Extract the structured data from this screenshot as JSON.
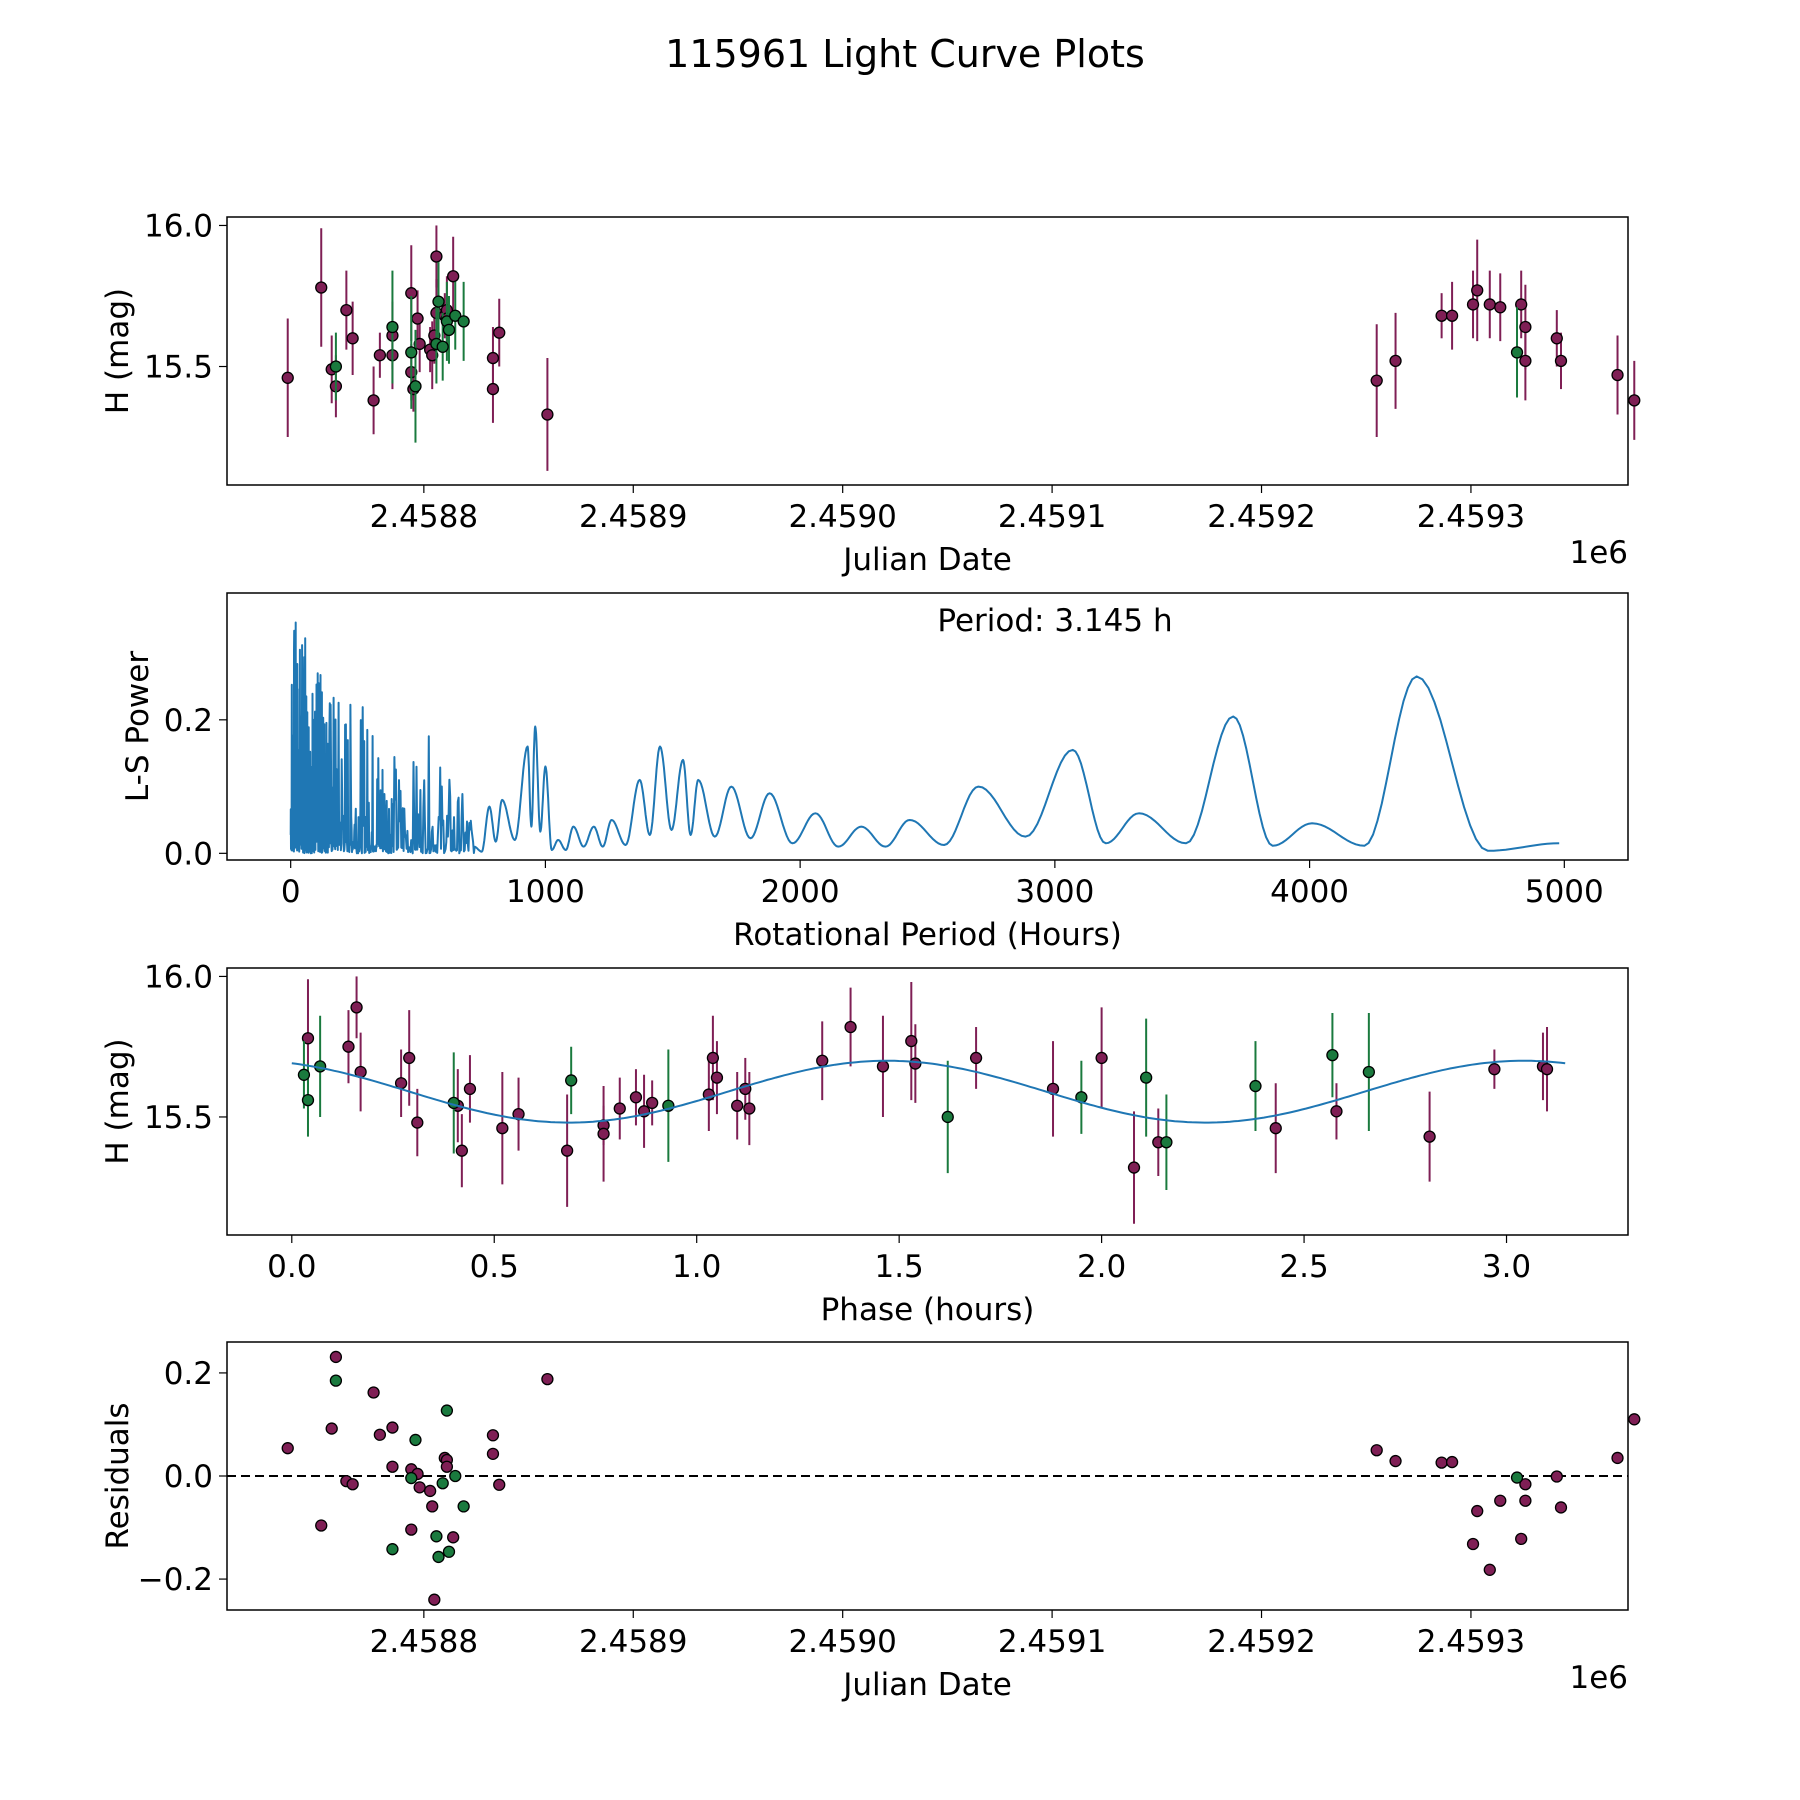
{
  "figure": {
    "title": "115961 Light Curve Plots"
  },
  "colors": {
    "series_a": "#7f1f55",
    "series_b": "#1a7a3e",
    "periodogram": "#1f77b4",
    "model": "#1f77b4",
    "marker_edge": "#000000"
  },
  "chart_data": [
    {
      "id": "light-curve",
      "type": "scatter",
      "title": "",
      "xlabel": "Julian Date",
      "ylabel": "H (mag)",
      "x_offset_label": "1e6",
      "xlim": [
        2458706,
        2459375
      ],
      "ylim": [
        15.08,
        16.03
      ],
      "xticks": [
        2458800,
        2458900,
        2459000,
        2459100,
        2459200,
        2459300
      ],
      "xtick_labels": [
        "2.4588",
        "2.4589",
        "2.4590",
        "2.4591",
        "2.4592",
        "2.4593"
      ],
      "yticks": [
        15.5,
        16.0
      ],
      "ytick_labels": [
        "15.5",
        "16.0"
      ],
      "grid": false,
      "series": [
        {
          "name": "magenta",
          "color_key": "series_a",
          "points": [
            [
              2458735,
              15.46,
              0.21
            ],
            [
              2458751,
              15.78,
              0.21
            ],
            [
              2458756,
              15.49,
              0.12
            ],
            [
              2458758,
              15.43,
              0.11
            ],
            [
              2458763,
              15.7,
              0.14
            ],
            [
              2458766,
              15.6,
              0.13
            ],
            [
              2458776,
              15.38,
              0.12
            ],
            [
              2458779,
              15.54,
              0.08
            ],
            [
              2458785,
              15.61,
              0.12
            ],
            [
              2458785,
              15.54,
              0.12
            ],
            [
              2458794,
              15.76,
              0.17
            ],
            [
              2458794,
              15.48,
              0.1
            ],
            [
              2458795,
              15.42,
              0.08
            ],
            [
              2458797,
              15.67,
              0.1
            ],
            [
              2458798,
              15.58,
              0.1
            ],
            [
              2458803,
              15.56,
              0.08
            ],
            [
              2458804,
              15.54,
              0.12
            ],
            [
              2458805,
              15.61,
              0.1
            ],
            [
              2458806,
              15.89,
              0.11
            ],
            [
              2458806,
              15.69,
              0.12
            ],
            [
              2458810,
              15.68,
              0.08
            ],
            [
              2458811,
              15.7,
              0.12
            ],
            [
              2458811,
              15.67,
              0.08
            ],
            [
              2458814,
              15.82,
              0.14
            ],
            [
              2458833,
              15.53,
              0.11
            ],
            [
              2458833,
              15.42,
              0.12
            ],
            [
              2458836,
              15.62,
              0.12
            ],
            [
              2458859,
              15.33,
              0.2
            ],
            [
              2459255,
              15.45,
              0.2
            ],
            [
              2459264,
              15.52,
              0.17
            ],
            [
              2459286,
              15.68,
              0.08
            ],
            [
              2459291,
              15.68,
              0.12
            ],
            [
              2459301,
              15.72,
              0.12
            ],
            [
              2459303,
              15.77,
              0.18
            ],
            [
              2459309,
              15.72,
              0.12
            ],
            [
              2459314,
              15.71,
              0.12
            ],
            [
              2459324,
              15.72,
              0.12
            ],
            [
              2459326,
              15.52,
              0.14
            ],
            [
              2459326,
              15.64,
              0.15
            ],
            [
              2459341,
              15.6,
              0.1
            ],
            [
              2459343,
              15.52,
              0.1
            ],
            [
              2459370,
              15.47,
              0.14
            ],
            [
              2459378,
              15.38,
              0.14
            ]
          ]
        },
        {
          "name": "green",
          "color_key": "series_b",
          "points": [
            [
              2458758,
              15.5,
              0.12
            ],
            [
              2458785,
              15.64,
              0.2
            ],
            [
              2458794,
              15.55,
              0.2
            ],
            [
              2458796,
              15.43,
              0.2
            ],
            [
              2458806,
              15.58,
              0.14
            ],
            [
              2458807,
              15.73,
              0.14
            ],
            [
              2458809,
              15.57,
              0.12
            ],
            [
              2458811,
              15.66,
              0.14
            ],
            [
              2458812,
              15.63,
              0.12
            ],
            [
              2458815,
              15.68,
              0.12
            ],
            [
              2458819,
              15.66,
              0.14
            ],
            [
              2459322,
              15.55,
              0.16
            ]
          ]
        }
      ]
    },
    {
      "id": "periodogram",
      "type": "line",
      "title": "",
      "annotation": "Period: 3.145 h",
      "xlabel": "Rotational Period (Hours)",
      "ylabel": "L-S Power",
      "xlim": [
        -250,
        5250
      ],
      "ylim": [
        -0.01,
        0.39
      ],
      "xticks": [
        0,
        1000,
        2000,
        3000,
        4000,
        5000
      ],
      "xtick_labels": [
        "0",
        "1000",
        "2000",
        "3000",
        "4000",
        "5000"
      ],
      "yticks": [
        0.0,
        0.2
      ],
      "ytick_labels": [
        "0.0",
        "0.2"
      ],
      "grid": false,
      "noisy_region": {
        "x_start": 0,
        "x_end": 720,
        "peak_envelope": [
          [
            0,
            0.375
          ],
          [
            50,
            0.34
          ],
          [
            100,
            0.28
          ],
          [
            200,
            0.25
          ],
          [
            350,
            0.2
          ],
          [
            450,
            0.13
          ],
          [
            550,
            0.18
          ],
          [
            650,
            0.1
          ],
          [
            720,
            0.08
          ]
        ]
      },
      "smooth_peaks": [
        [
          780,
          0.07
        ],
        [
          830,
          0.08
        ],
        [
          930,
          0.16
        ],
        [
          960,
          0.19
        ],
        [
          1000,
          0.13
        ],
        [
          1050,
          0.02
        ],
        [
          1110,
          0.04
        ],
        [
          1190,
          0.04
        ],
        [
          1260,
          0.05
        ],
        [
          1370,
          0.11
        ],
        [
          1450,
          0.16
        ],
        [
          1540,
          0.14
        ],
        [
          1600,
          0.11
        ],
        [
          1730,
          0.1
        ],
        [
          1880,
          0.09
        ],
        [
          2060,
          0.06
        ],
        [
          2240,
          0.04
        ],
        [
          2430,
          0.05
        ],
        [
          2700,
          0.1
        ],
        [
          3070,
          0.155
        ],
        [
          3330,
          0.06
        ],
        [
          3700,
          0.205
        ],
        [
          4010,
          0.045
        ],
        [
          4420,
          0.265
        ],
        [
          4980,
          0.015
        ]
      ],
      "series": [
        {
          "name": "L-S power",
          "color_key": "periodogram"
        }
      ]
    },
    {
      "id": "phase-folded",
      "type": "scatter",
      "title": "",
      "xlabel": "Phase (hours)",
      "ylabel": "H (mag)",
      "xlim": [
        -0.16,
        3.3
      ],
      "ylim": [
        15.08,
        16.03
      ],
      "xticks": [
        0.0,
        0.5,
        1.0,
        1.5,
        2.0,
        2.5,
        3.0
      ],
      "xtick_labels": [
        "0.0",
        "0.5",
        "1.0",
        "1.5",
        "2.0",
        "2.5",
        "3.0"
      ],
      "yticks": [
        15.5,
        16.0
      ],
      "ytick_labels": [
        "15.5",
        "16.0"
      ],
      "grid": false,
      "model": {
        "type": "sinusoid",
        "mean": 15.59,
        "amplitude": 0.11,
        "period_hours": 1.5725,
        "peak_phase": 1.47,
        "x_range": [
          0.0,
          3.145
        ]
      },
      "series": [
        {
          "name": "magenta",
          "color_key": "series_a",
          "points": [
            [
              0.04,
              15.78,
              0.21
            ],
            [
              0.14,
              15.75,
              0.13
            ],
            [
              0.16,
              15.89,
              0.11
            ],
            [
              0.17,
              15.66,
              0.14
            ],
            [
              0.27,
              15.62,
              0.12
            ],
            [
              0.29,
              15.71,
              0.17
            ],
            [
              0.31,
              15.48,
              0.12
            ],
            [
              0.41,
              15.54,
              0.13
            ],
            [
              0.42,
              15.38,
              0.13
            ],
            [
              0.44,
              15.6,
              0.12
            ],
            [
              0.52,
              15.46,
              0.2
            ],
            [
              0.56,
              15.51,
              0.13
            ],
            [
              0.68,
              15.38,
              0.2
            ],
            [
              0.77,
              15.47,
              0.07
            ],
            [
              0.77,
              15.44,
              0.17
            ],
            [
              0.81,
              15.53,
              0.11
            ],
            [
              0.85,
              15.57,
              0.1
            ],
            [
              0.87,
              15.52,
              0.13
            ],
            [
              0.89,
              15.55,
              0.08
            ],
            [
              1.03,
              15.58,
              0.13
            ],
            [
              1.04,
              15.71,
              0.15
            ],
            [
              1.05,
              15.64,
              0.13
            ],
            [
              1.1,
              15.54,
              0.12
            ],
            [
              1.12,
              15.6,
              0.11
            ],
            [
              1.13,
              15.53,
              0.13
            ],
            [
              1.31,
              15.7,
              0.14
            ],
            [
              1.38,
              15.82,
              0.14
            ],
            [
              1.46,
              15.68,
              0.18
            ],
            [
              1.53,
              15.77,
              0.21
            ],
            [
              1.54,
              15.69,
              0.14
            ],
            [
              1.69,
              15.71,
              0.11
            ],
            [
              1.88,
              15.6,
              0.17
            ],
            [
              2.0,
              15.71,
              0.18
            ],
            [
              2.08,
              15.32,
              0.2
            ],
            [
              2.14,
              15.41,
              0.12
            ],
            [
              2.43,
              15.46,
              0.16
            ],
            [
              2.58,
              15.52,
              0.1
            ],
            [
              2.81,
              15.43,
              0.16
            ],
            [
              2.97,
              15.67,
              0.07
            ],
            [
              3.09,
              15.68,
              0.12
            ],
            [
              3.1,
              15.67,
              0.15
            ]
          ]
        },
        {
          "name": "green",
          "color_key": "series_b",
          "points": [
            [
              0.03,
              15.65,
              0.12
            ],
            [
              0.04,
              15.56,
              0.13
            ],
            [
              0.07,
              15.68,
              0.18
            ],
            [
              0.4,
              15.55,
              0.18
            ],
            [
              0.69,
              15.63,
              0.12
            ],
            [
              0.93,
              15.54,
              0.2
            ],
            [
              1.62,
              15.5,
              0.2
            ],
            [
              1.95,
              15.57,
              0.13
            ],
            [
              2.11,
              15.64,
              0.21
            ],
            [
              2.16,
              15.41,
              0.17
            ],
            [
              2.38,
              15.61,
              0.16
            ],
            [
              2.57,
              15.72,
              0.15
            ],
            [
              2.66,
              15.66,
              0.21
            ]
          ]
        }
      ]
    },
    {
      "id": "residuals",
      "type": "scatter",
      "title": "",
      "xlabel": "Julian Date",
      "ylabel": "Residuals",
      "x_offset_label": "1e6",
      "xlim": [
        2458706,
        2459375
      ],
      "ylim": [
        -0.26,
        0.26
      ],
      "xticks": [
        2458800,
        2458900,
        2459000,
        2459100,
        2459200,
        2459300
      ],
      "xtick_labels": [
        "2.4588",
        "2.4589",
        "2.4590",
        "2.4591",
        "2.4592",
        "2.4593"
      ],
      "yticks": [
        -0.2,
        0.0,
        0.2
      ],
      "ytick_labels": [
        "−0.2",
        "0.0",
        "0.2"
      ],
      "zero_line": {
        "y": 0.0,
        "style": "dashed"
      },
      "grid": false,
      "series": [
        {
          "name": "magenta",
          "color_key": "series_a",
          "points": [
            [
              2458735,
              0.054
            ],
            [
              2458751,
              -0.096
            ],
            [
              2458756,
              0.092
            ],
            [
              2458758,
              0.231
            ],
            [
              2458763,
              -0.01
            ],
            [
              2458766,
              -0.016
            ],
            [
              2458776,
              0.162
            ],
            [
              2458779,
              0.08
            ],
            [
              2458785,
              0.094
            ],
            [
              2458785,
              0.018
            ],
            [
              2458794,
              0.013
            ],
            [
              2458794,
              -0.104
            ],
            [
              2458797,
              0.004
            ],
            [
              2458798,
              -0.022
            ],
            [
              2458803,
              -0.029
            ],
            [
              2458804,
              -0.059
            ],
            [
              2458805,
              -0.24
            ],
            [
              2458810,
              0.035
            ],
            [
              2458811,
              0.031
            ],
            [
              2458811,
              0.018
            ],
            [
              2458814,
              -0.119
            ],
            [
              2458833,
              0.079
            ],
            [
              2458833,
              0.043
            ],
            [
              2458836,
              -0.017
            ],
            [
              2458859,
              0.188
            ],
            [
              2459255,
              0.05
            ],
            [
              2459264,
              0.029
            ],
            [
              2459286,
              0.026
            ],
            [
              2459291,
              0.027
            ],
            [
              2459301,
              -0.132
            ],
            [
              2459303,
              -0.068
            ],
            [
              2459309,
              -0.182
            ],
            [
              2459314,
              -0.048
            ],
            [
              2459324,
              -0.122
            ],
            [
              2459326,
              -0.016
            ],
            [
              2459326,
              -0.048
            ],
            [
              2459341,
              -0.001
            ],
            [
              2459343,
              -0.061
            ],
            [
              2459370,
              0.035
            ],
            [
              2459378,
              0.11
            ]
          ]
        },
        {
          "name": "green",
          "color_key": "series_b",
          "points": [
            [
              2458758,
              0.185
            ],
            [
              2458785,
              -0.142
            ],
            [
              2458794,
              -0.004
            ],
            [
              2458796,
              0.07
            ],
            [
              2458806,
              -0.117
            ],
            [
              2458807,
              -0.157
            ],
            [
              2458809,
              -0.014
            ],
            [
              2458811,
              0.127
            ],
            [
              2458812,
              -0.147
            ],
            [
              2458815,
              0.0
            ],
            [
              2458819,
              -0.059
            ],
            [
              2459322,
              -0.003
            ]
          ]
        }
      ]
    }
  ]
}
